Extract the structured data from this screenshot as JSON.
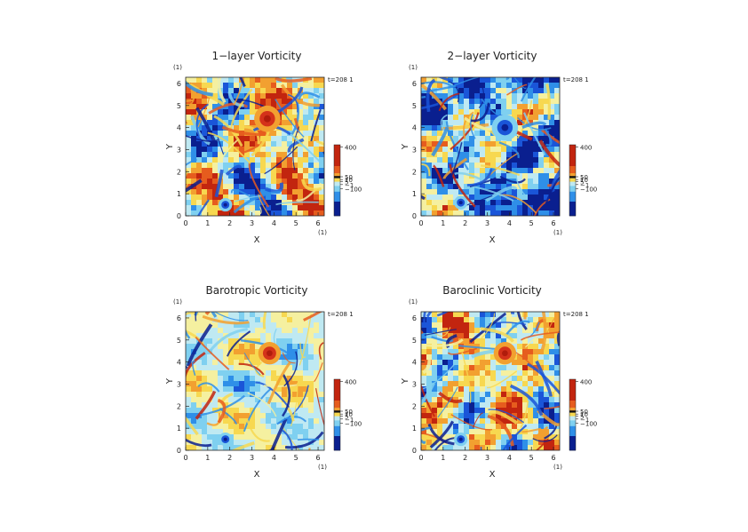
{
  "chart_data": [
    {
      "type": "heatmap",
      "title": "1−layer Vorticity",
      "xlabel": "X",
      "ylabel": "Y",
      "xunit": "(1)",
      "yunit": "(1)",
      "time_label": "t=208 1",
      "xlim": [
        0,
        6.28
      ],
      "ylim": [
        0,
        6.28
      ],
      "xticks": [
        "0",
        "1",
        "2",
        "3",
        "4",
        "5",
        "6"
      ],
      "yticks": [
        "0",
        "1",
        "2",
        "3",
        "4",
        "5",
        "6"
      ],
      "colorbar": {
        "ticks": [
          "400",
          "50",
          "10",
          "5",
          "−1",
          "−100"
        ],
        "values": [
          400,
          50,
          10,
          5,
          -1,
          -100
        ]
      },
      "features": [
        {
          "kind": "strong-positive-vortex",
          "x": 3.7,
          "y": 4.4,
          "radius": 0.35
        },
        {
          "kind": "strong-negative-vortex",
          "x": 1.8,
          "y": 0.5,
          "radius": 0.18
        }
      ]
    },
    {
      "type": "heatmap",
      "title": "2−layer Vorticity",
      "xlabel": "X",
      "ylabel": "Y",
      "xunit": "(1)",
      "yunit": "(1)",
      "time_label": "t=208 1",
      "xlim": [
        0,
        6.28
      ],
      "ylim": [
        0,
        6.28
      ],
      "xticks": [
        "0",
        "1",
        "2",
        "3",
        "4",
        "5",
        "6"
      ],
      "yticks": [
        "0",
        "1",
        "2",
        "3",
        "4",
        "5",
        "6"
      ],
      "colorbar": {
        "ticks": [
          "400",
          "50",
          "10",
          "5",
          "−1",
          "−100"
        ],
        "values": [
          400,
          50,
          10,
          5,
          -1,
          -100
        ]
      },
      "features": [
        {
          "kind": "strong-negative-vortex",
          "x": 3.8,
          "y": 4.0,
          "radius": 0.35
        },
        {
          "kind": "strong-negative-vortex",
          "x": 1.8,
          "y": 0.6,
          "radius": 0.18
        }
      ]
    },
    {
      "type": "heatmap",
      "title": "Barotropic Vorticity",
      "xlabel": "X",
      "ylabel": "Y",
      "xunit": "(1)",
      "yunit": "(1)",
      "time_label": "t=208 1",
      "xlim": [
        0,
        6.28
      ],
      "ylim": [
        0,
        6.28
      ],
      "xticks": [
        "0",
        "1",
        "2",
        "3",
        "4",
        "5",
        "6"
      ],
      "yticks": [
        "0",
        "1",
        "2",
        "3",
        "4",
        "5",
        "6"
      ],
      "colorbar": {
        "ticks": [
          "400",
          "50",
          "10",
          "5",
          "−1",
          "−100"
        ],
        "values": [
          400,
          50,
          10,
          5,
          -1,
          -100
        ]
      },
      "features": [
        {
          "kind": "strong-positive-vortex",
          "x": 3.8,
          "y": 4.4,
          "radius": 0.3
        },
        {
          "kind": "strong-negative-vortex",
          "x": 1.8,
          "y": 0.5,
          "radius": 0.18
        }
      ]
    },
    {
      "type": "heatmap",
      "title": "Baroclinic Vorticity",
      "xlabel": "X",
      "ylabel": "Y",
      "xunit": "(1)",
      "yunit": "(1)",
      "time_label": "t=208 1",
      "xlim": [
        0,
        6.28
      ],
      "ylim": [
        0,
        6.28
      ],
      "xticks": [
        "0",
        "1",
        "2",
        "3",
        "4",
        "5",
        "6"
      ],
      "yticks": [
        "0",
        "1",
        "2",
        "3",
        "4",
        "5",
        "6"
      ],
      "colorbar": {
        "ticks": [
          "400",
          "50",
          "10",
          "5",
          "−1",
          "−100"
        ],
        "values": [
          400,
          50,
          10,
          5,
          -1,
          -100
        ]
      },
      "features": [
        {
          "kind": "strong-positive-vortex",
          "x": 3.8,
          "y": 4.4,
          "radius": 0.3
        },
        {
          "kind": "strong-negative-vortex",
          "x": 1.8,
          "y": 0.5,
          "radius": 0.18
        }
      ]
    }
  ],
  "colormap": [
    "#0a1f8f",
    "#1a55d8",
    "#2f8fe8",
    "#7fd0f0",
    "#bfe9f2",
    "#f5f0a0",
    "#f7d850",
    "#f2a030",
    "#e65c1e",
    "#c2250f"
  ]
}
